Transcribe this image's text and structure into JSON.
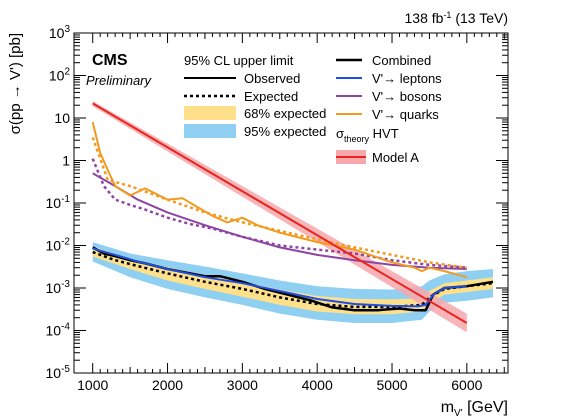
{
  "chart_data": {
    "type": "line",
    "lumi_label": "138 fb⁻¹ (13 TeV)",
    "experiment": "CMS",
    "status": "Preliminary",
    "ylabel": "σ(pp → V') [pb]",
    "xlabel": "m_V' [GeV]",
    "xlim": [
      750,
      6550
    ],
    "ylim_log10": [
      -5,
      3
    ],
    "yscale": "log",
    "x_ticks": [
      1000,
      2000,
      3000,
      4000,
      5000,
      6000
    ],
    "y_ticks": [
      "10⁻⁵",
      "10⁻⁴",
      "10⁻³",
      "10⁻²",
      "10⁻¹",
      "1",
      "10",
      "10²",
      "10³"
    ],
    "y_tick_exps": [
      -5,
      -4,
      -3,
      -2,
      -1,
      0,
      1,
      2,
      3
    ],
    "legend": {
      "header_left": "95% CL upper limit",
      "observed": "Observed",
      "expected": "Expected",
      "band68": "68% expected",
      "band95": "95% expected",
      "combined": "Combined",
      "leptons": "V'→ leptons",
      "bosons": "V'→ bosons",
      "quarks": "V'→ quarks",
      "theory_header": "σtheory HVT",
      "model_a": "Model A"
    },
    "colors": {
      "band68": "#fee08b",
      "band95": "#8fd0f2",
      "combined": "#000000",
      "leptons": "#1f4fe0",
      "bosons": "#8e44a3",
      "quarks": "#f39a1e",
      "theory_line": "#e8251e",
      "theory_band": "#f7a8ad"
    },
    "series": [
      {
        "name": "Combined Observed",
        "style": "solid",
        "color_key": "combined",
        "x": [
          1000,
          1150,
          1300,
          1500,
          1700,
          2000,
          2300,
          2500,
          2700,
          3000,
          3300,
          3600,
          3900,
          4200,
          4500,
          4800,
          5100,
          5300,
          5450,
          5550,
          5700,
          6000,
          6350
        ],
        "y": [
          0.009,
          0.0065,
          0.0056,
          0.0045,
          0.0038,
          0.0028,
          0.0022,
          0.0019,
          0.0019,
          0.0014,
          0.00095,
          0.0007,
          0.00052,
          0.00035,
          0.0003,
          0.0003,
          0.00033,
          0.0003,
          0.0003,
          0.0007,
          0.001,
          0.0011,
          0.0014
        ]
      },
      {
        "name": "Combined Expected",
        "style": "dotted",
        "color_key": "combined",
        "x": [
          1000,
          1300,
          1600,
          2000,
          2500,
          3000,
          3500,
          4000,
          4500,
          5000,
          5400,
          5500,
          5700,
          6000,
          6350
        ],
        "y": [
          0.007,
          0.0045,
          0.0033,
          0.0022,
          0.0014,
          0.00095,
          0.0006,
          0.00042,
          0.00036,
          0.00036,
          0.0004,
          0.0006,
          0.00095,
          0.0011,
          0.0013
        ]
      },
      {
        "name": "V'→ leptons",
        "style": "solid",
        "color_key": "leptons",
        "x": [
          1000,
          1300,
          1600,
          2000,
          2500,
          3000,
          3500,
          4000,
          4500,
          5000,
          5350,
          5450,
          5550,
          5700,
          6000
        ],
        "y": [
          0.0085,
          0.006,
          0.0042,
          0.0028,
          0.0018,
          0.0013,
          0.00085,
          0.00055,
          0.00042,
          0.00038,
          0.00037,
          0.0004,
          0.0007,
          0.001,
          0.0011
        ]
      },
      {
        "name": "V'→ bosons Observed",
        "style": "solid",
        "color_key": "bosons",
        "x": [
          1000,
          1300,
          1600,
          2000,
          2500,
          3000,
          3500,
          4000,
          4500,
          5000,
          5500,
          6000
        ],
        "y": [
          0.5,
          0.25,
          0.12,
          0.06,
          0.03,
          0.016,
          0.009,
          0.006,
          0.0045,
          0.0035,
          0.003,
          0.0028
        ]
      },
      {
        "name": "V'→ bosons Expected",
        "style": "dotted",
        "color_key": "bosons",
        "x": [
          1000,
          1150,
          1300,
          1500,
          1700,
          2000,
          2300,
          2600,
          3000,
          3500,
          4000,
          4500,
          5000,
          5500,
          6000
        ],
        "y": [
          1.1,
          0.25,
          0.12,
          0.09,
          0.07,
          0.045,
          0.032,
          0.025,
          0.016,
          0.01,
          0.008,
          0.0065,
          0.0045,
          0.0035,
          0.003
        ]
      },
      {
        "name": "V'→ quarks Observed",
        "style": "solid",
        "color_key": "quarks",
        "x": [
          1000,
          1100,
          1200,
          1300,
          1500,
          1700,
          2000,
          2200,
          2400,
          2600,
          2800,
          3000,
          3200,
          3500,
          4000,
          4500,
          5000,
          5300,
          5400,
          5500,
          5700,
          5900,
          6000
        ],
        "y": [
          8,
          1.5,
          0.6,
          0.25,
          0.15,
          0.22,
          0.12,
          0.13,
          0.08,
          0.05,
          0.035,
          0.045,
          0.03,
          0.02,
          0.012,
          0.008,
          0.004,
          0.003,
          0.0025,
          0.003,
          0.0025,
          0.002,
          0.0018
        ]
      },
      {
        "name": "V'→ quarks Expected",
        "style": "dotted",
        "color_key": "quarks",
        "x": [
          1000,
          1200,
          1500,
          2000,
          2500,
          3000,
          3500,
          4000,
          4500,
          5000,
          5500,
          6000
        ],
        "y": [
          3.5,
          0.35,
          0.25,
          0.12,
          0.06,
          0.035,
          0.022,
          0.014,
          0.009,
          0.006,
          0.004,
          0.003
        ]
      },
      {
        "name": "Model A",
        "style": "solid",
        "color_key": "theory_line",
        "x": [
          1000,
          6000
        ],
        "y": [
          22,
          0.00015
        ]
      }
    ],
    "bands": [
      {
        "name": "95% expected",
        "color_key": "band95",
        "x": [
          1000,
          1500,
          2000,
          2500,
          3000,
          3500,
          4000,
          4500,
          5000,
          5400,
          5500,
          5700,
          6000,
          6350
        ],
        "lo": [
          0.0042,
          0.0018,
          0.00095,
          0.0006,
          0.0004,
          0.00025,
          0.00018,
          0.00015,
          0.00015,
          0.00018,
          0.00028,
          0.00045,
          0.0005,
          0.0006
        ],
        "hi": [
          0.012,
          0.0065,
          0.0045,
          0.0032,
          0.0022,
          0.0015,
          0.0011,
          0.00095,
          0.00092,
          0.0011,
          0.0015,
          0.0021,
          0.0025,
          0.0028
        ]
      },
      {
        "name": "68% expected",
        "color_key": "band68",
        "x": [
          1000,
          1500,
          2000,
          2500,
          3000,
          3500,
          4000,
          4500,
          5000,
          5400,
          5500,
          5700,
          6000,
          6350
        ],
        "lo": [
          0.0055,
          0.0028,
          0.0015,
          0.00095,
          0.00062,
          0.0004,
          0.00028,
          0.00024,
          0.00024,
          0.00028,
          0.00042,
          0.0007,
          0.0008,
          0.00095
        ],
        "hi": [
          0.0095,
          0.0048,
          0.0031,
          0.002,
          0.0014,
          0.00092,
          0.00065,
          0.00055,
          0.00054,
          0.00058,
          0.00085,
          0.0013,
          0.0015,
          0.0018
        ]
      },
      {
        "name": "Model A uncertainty",
        "color_key": "theory_band",
        "x": [
          1000,
          6000
        ],
        "lo": [
          19,
          9e-05
        ],
        "hi": [
          25,
          0.00025
        ]
      }
    ]
  }
}
